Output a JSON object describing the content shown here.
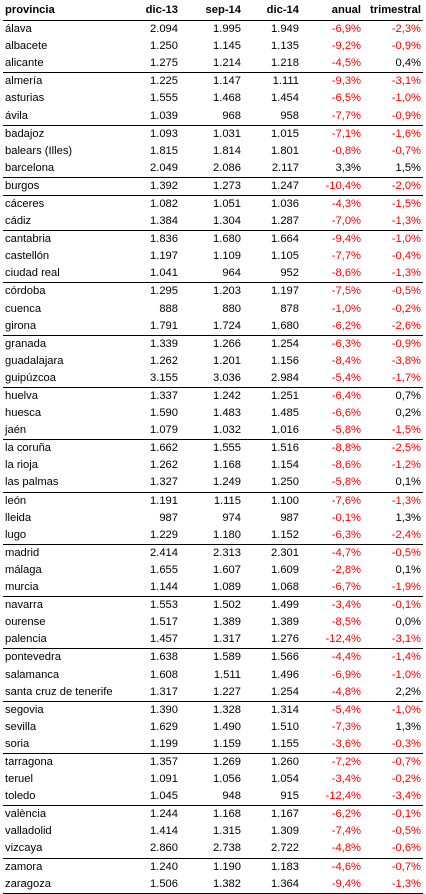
{
  "headers": [
    "provincia",
    "dic-13",
    "sep-14",
    "dic-14",
    "anual",
    "trimestral"
  ],
  "colors": {
    "negative": "#ff0000",
    "positive": "#000000",
    "rule": "#000000"
  },
  "rows": [
    [
      "álava",
      "2.094",
      "1.995",
      "1.949",
      "-6,9%",
      "-2,3%"
    ],
    [
      "albacete",
      "1.250",
      "1.145",
      "1.135",
      "-9,2%",
      "-0,9%"
    ],
    [
      "alicante",
      "1.275",
      "1.214",
      "1.218",
      "-4,5%",
      "0,4%"
    ],
    [
      "almería",
      "1.225",
      "1.147",
      "1.111",
      "-9,3%",
      "-3,1%"
    ],
    [
      "asturias",
      "1.555",
      "1.468",
      "1.454",
      "-6,5%",
      "-1,0%"
    ],
    [
      "ávila",
      "1.039",
      "968",
      "958",
      "-7,7%",
      "-0,9%"
    ],
    [
      "badajoz",
      "1.093",
      "1.031",
      "1.015",
      "-7,1%",
      "-1,6%"
    ],
    [
      "balears (Illes)",
      "1.815",
      "1.814",
      "1.801",
      "-0,8%",
      "-0,7%"
    ],
    [
      "barcelona",
      "2.049",
      "2.086",
      "2.117",
      "3,3%",
      "1,5%"
    ],
    [
      "burgos",
      "1.392",
      "1.273",
      "1.247",
      "-10,4%",
      "-2,0%"
    ],
    [
      "cáceres",
      "1.082",
      "1.051",
      "1.036",
      "-4,3%",
      "-1,5%"
    ],
    [
      "cádiz",
      "1.384",
      "1.304",
      "1.287",
      "-7,0%",
      "-1,3%"
    ],
    [
      "cantabria",
      "1.836",
      "1.680",
      "1.664",
      "-9,4%",
      "-1,0%"
    ],
    [
      "castellón",
      "1.197",
      "1.109",
      "1.105",
      "-7,7%",
      "-0,4%"
    ],
    [
      "ciudad real",
      "1.041",
      "964",
      "952",
      "-8,6%",
      "-1,3%"
    ],
    [
      "córdoba",
      "1.295",
      "1.203",
      "1.197",
      "-7,5%",
      "-0,5%"
    ],
    [
      "cuenca",
      "888",
      "880",
      "878",
      "-1,0%",
      "-0,2%"
    ],
    [
      "girona",
      "1.791",
      "1.724",
      "1.680",
      "-6,2%",
      "-2,6%"
    ],
    [
      "granada",
      "1.339",
      "1.266",
      "1.254",
      "-6,3%",
      "-0,9%"
    ],
    [
      "guadalajara",
      "1.262",
      "1.201",
      "1.156",
      "-8,4%",
      "-3,8%"
    ],
    [
      "guipúzcoa",
      "3.155",
      "3.036",
      "2.984",
      "-5,4%",
      "-1,7%"
    ],
    [
      "huelva",
      "1.337",
      "1.242",
      "1.251",
      "-6,4%",
      "0,7%"
    ],
    [
      "huesca",
      "1.590",
      "1.483",
      "1.485",
      "-6,6%",
      "0,2%"
    ],
    [
      "jaén",
      "1.079",
      "1.032",
      "1.016",
      "-5,8%",
      "-1,5%"
    ],
    [
      "la coruña",
      "1.662",
      "1.555",
      "1.516",
      "-8,8%",
      "-2,5%"
    ],
    [
      "la rioja",
      "1.262",
      "1.168",
      "1.154",
      "-8,6%",
      "-1,2%"
    ],
    [
      "las palmas",
      "1.327",
      "1.249",
      "1.250",
      "-5,8%",
      "0,1%"
    ],
    [
      "león",
      "1.191",
      "1.115",
      "1.100",
      "-7,6%",
      "-1,3%"
    ],
    [
      "lleida",
      "987",
      "974",
      "987",
      "-0,1%",
      "1,3%"
    ],
    [
      "lugo",
      "1.229",
      "1.180",
      "1.152",
      "-6,3%",
      "-2,4%"
    ],
    [
      "madrid",
      "2.414",
      "2.313",
      "2.301",
      "-4,7%",
      "-0,5%"
    ],
    [
      "málaga",
      "1.655",
      "1.607",
      "1.609",
      "-2,8%",
      "0,1%"
    ],
    [
      "murcia",
      "1.144",
      "1.089",
      "1.068",
      "-6,7%",
      "-1,9%"
    ],
    [
      "navarra",
      "1.553",
      "1.502",
      "1.499",
      "-3,4%",
      "-0,1%"
    ],
    [
      "ourense",
      "1.517",
      "1.389",
      "1.389",
      "-8,5%",
      "0,0%"
    ],
    [
      "palencia",
      "1.457",
      "1.317",
      "1.276",
      "-12,4%",
      "-3,1%"
    ],
    [
      "pontevedra",
      "1.638",
      "1.589",
      "1.566",
      "-4,4%",
      "-1,4%"
    ],
    [
      "salamanca",
      "1.608",
      "1.511",
      "1.496",
      "-6,9%",
      "-1,0%"
    ],
    [
      "santa cruz de tenerife",
      "1.317",
      "1.227",
      "1.254",
      "-4,8%",
      "2,2%"
    ],
    [
      "segovia",
      "1.390",
      "1.328",
      "1.314",
      "-5,4%",
      "-1,0%"
    ],
    [
      "sevilla",
      "1.629",
      "1.490",
      "1.510",
      "-7,3%",
      "1,3%"
    ],
    [
      "soria",
      "1.199",
      "1.159",
      "1.155",
      "-3,6%",
      "-0,3%"
    ],
    [
      "tarragona",
      "1.357",
      "1.269",
      "1.260",
      "-7,2%",
      "-0,7%"
    ],
    [
      "teruel",
      "1.091",
      "1.056",
      "1.054",
      "-3,4%",
      "-0,2%"
    ],
    [
      "toledo",
      "1.045",
      "948",
      "915",
      "-12,4%",
      "-3,4%"
    ],
    [
      "valència",
      "1.244",
      "1.168",
      "1.167",
      "-6,2%",
      "-0,1%"
    ],
    [
      "valladolid",
      "1.414",
      "1.315",
      "1.309",
      "-7,4%",
      "-0,5%"
    ],
    [
      "vizcaya",
      "2.860",
      "2.738",
      "2.722",
      "-4,8%",
      "-0,6%"
    ],
    [
      "zamora",
      "1.240",
      "1.190",
      "1.183",
      "-4,6%",
      "-0,7%"
    ],
    [
      "zaragoza",
      "1.506",
      "1.382",
      "1.364",
      "-9,4%",
      "-1,3%"
    ]
  ]
}
